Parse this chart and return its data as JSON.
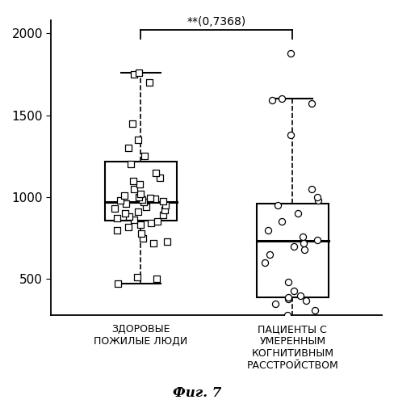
{
  "group1_label": "ЗДОРОВЫЕ\nПОЖИЛЫЕ ЛЮДИ",
  "group2_label": "ПАЦИЕНТЫ С\nУМЕРЕННЫМ\nКОГНИТИВНЫМ\nРАССТРОЙСТВОМ",
  "group1_data": [
    470,
    500,
    510,
    720,
    730,
    750,
    780,
    800,
    820,
    830,
    840,
    850,
    860,
    870,
    880,
    890,
    900,
    910,
    920,
    930,
    940,
    950,
    960,
    970,
    975,
    980,
    985,
    990,
    995,
    1000,
    1010,
    1020,
    1050,
    1080,
    1100,
    1120,
    1150,
    1200,
    1250,
    1300,
    1350,
    1450,
    1700,
    1750,
    1760
  ],
  "group2_data": [
    230,
    280,
    310,
    350,
    370,
    380,
    390,
    400,
    430,
    480,
    600,
    650,
    680,
    700,
    720,
    740,
    760,
    800,
    850,
    900,
    950,
    980,
    1000,
    1050,
    1380,
    1570,
    1590,
    1600,
    1880
  ],
  "group1_box": {
    "q1": 855,
    "median": 968,
    "q3": 1215,
    "whisker_low": 470,
    "whisker_high": 1760
  },
  "group2_box": {
    "q1": 390,
    "median": 735,
    "q3": 960,
    "whisker_low": 230,
    "whisker_high": 1600
  },
  "group2_outlier": 1880,
  "ylim": [
    280,
    2080
  ],
  "yticks": [
    500,
    1000,
    1500,
    2000
  ],
  "significance_text": "**(0,7368)",
  "fig_label": "Фиг. 7",
  "background_color": "#ffffff"
}
